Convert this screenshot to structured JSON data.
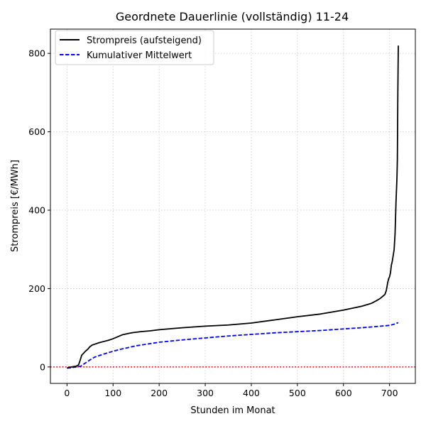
{
  "chart_data": {
    "type": "line",
    "title": "Geordnete Dauerlinie (vollständig) 11-24",
    "xlabel": "Stunden im Monat",
    "ylabel": "Strompreis [€/MWh]",
    "xlim": [
      -36,
      756
    ],
    "ylim": [
      -42,
      862
    ],
    "xticks": [
      0,
      100,
      200,
      300,
      400,
      500,
      600,
      700
    ],
    "yticks": [
      0,
      200,
      400,
      600,
      800
    ],
    "grid": true,
    "legend_position": "top-left",
    "reference_line": {
      "y": 0,
      "color": "#ff0000",
      "style": "dotted"
    },
    "series": [
      {
        "name": "Strompreis (aufsteigend)",
        "color": "#000000",
        "style": "solid",
        "x": [
          0,
          5,
          10,
          15,
          20,
          25,
          28,
          32,
          36,
          40,
          45,
          50,
          55,
          60,
          70,
          80,
          90,
          100,
          110,
          120,
          140,
          160,
          180,
          200,
          250,
          300,
          350,
          400,
          450,
          500,
          550,
          600,
          620,
          640,
          660,
          670,
          680,
          685,
          690,
          693,
          696,
          698,
          700,
          702,
          704,
          706,
          708,
          710,
          712,
          714,
          715,
          716,
          717,
          718,
          719
        ],
        "y": [
          -3,
          -1,
          0,
          1,
          2,
          5,
          15,
          30,
          35,
          40,
          45,
          52,
          56,
          58,
          62,
          65,
          68,
          72,
          77,
          82,
          87,
          90,
          92,
          95,
          100,
          104,
          107,
          112,
          120,
          128,
          135,
          145,
          150,
          155,
          162,
          168,
          175,
          180,
          185,
          195,
          215,
          225,
          230,
          240,
          260,
          270,
          285,
          300,
          340,
          420,
          450,
          480,
          530,
          700,
          820
        ]
      },
      {
        "name": "Kumulativer Mittelwert",
        "color": "#0000ff",
        "style": "dashed",
        "x": [
          0,
          10,
          20,
          30,
          40,
          50,
          60,
          80,
          100,
          120,
          150,
          200,
          250,
          300,
          350,
          400,
          450,
          500,
          550,
          600,
          650,
          700,
          710,
          719
        ],
        "y": [
          -3,
          -2,
          0,
          2,
          10,
          18,
          25,
          33,
          40,
          46,
          54,
          63,
          69,
          74,
          79,
          83,
          87,
          90,
          93,
          97,
          101,
          106,
          109,
          113
        ]
      }
    ]
  }
}
